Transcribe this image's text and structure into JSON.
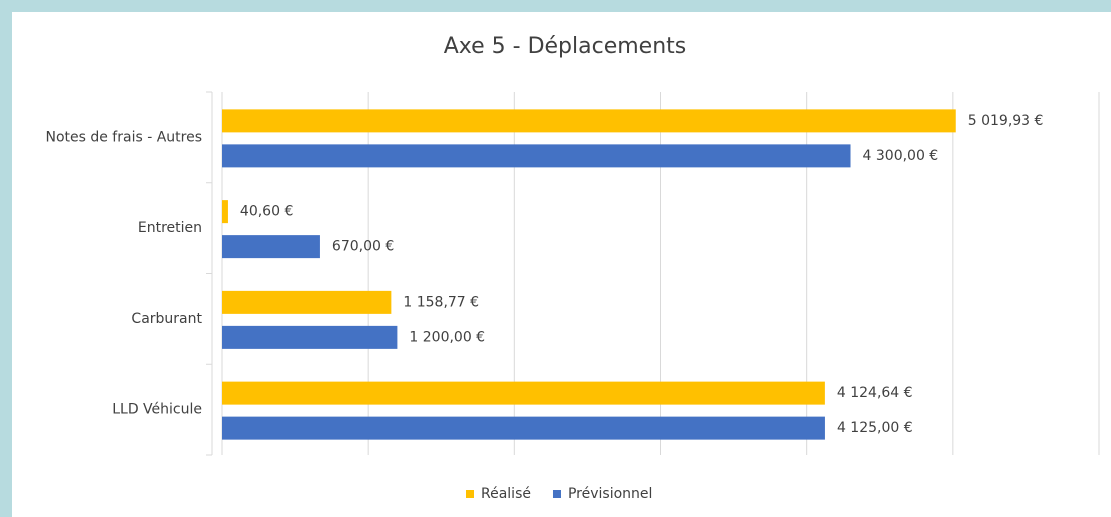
{
  "chart_data": {
    "type": "bar",
    "orientation": "horizontal",
    "title": "Axe 5 - Déplacements",
    "categories": [
      "Notes de frais - Autres",
      "Entretien",
      "Carburant",
      "LLD Véhicule"
    ],
    "series": [
      {
        "name": "Réalisé",
        "color": "#FFC000",
        "values": [
          5019.93,
          40.6,
          1158.77,
          4124.64
        ],
        "value_labels": [
          "5 019,93 €",
          "40,60 €",
          "1 158,77 €",
          "4 124,64 €"
        ]
      },
      {
        "name": "Prévisionnel",
        "color": "#4472C4",
        "values": [
          4300,
          670,
          1200,
          4125
        ],
        "value_labels": [
          "4 300,00 €",
          "670,00 €",
          "1 200,00 €",
          "4 125,00 €"
        ]
      }
    ],
    "xlim": [
      0,
      6000
    ],
    "xticks": [
      0,
      1000,
      2000,
      3000,
      4000,
      5000,
      6000
    ],
    "grid": true,
    "legend": "bottom"
  }
}
